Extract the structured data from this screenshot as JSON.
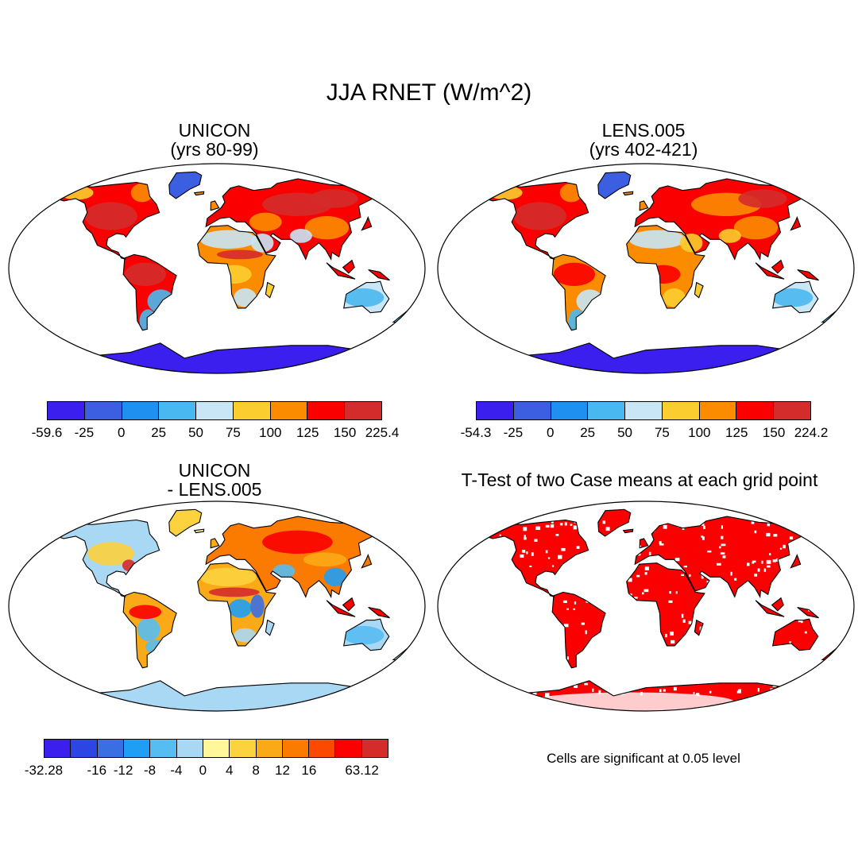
{
  "title": "JJA RNET (W/m^2)",
  "panels": [
    {
      "id": "unicon",
      "title_lines": [
        "UNICON",
        "(yrs 80-99)"
      ],
      "colorbar": {
        "colors": [
          "#3a1fef",
          "#3b5fe0",
          "#1f8ff0",
          "#4ab8f0",
          "#c8e6f6",
          "#fbcd2f",
          "#fb8c00",
          "#fb0000",
          "#d42b2b"
        ],
        "labels": [
          "-59.6",
          "-25",
          "0",
          "25",
          "50",
          "75",
          "100",
          "125",
          "150",
          "225.4"
        ]
      }
    },
    {
      "id": "lens",
      "title_lines": [
        "LENS.005",
        "(yrs 402-421)"
      ],
      "colorbar": {
        "colors": [
          "#3a1fef",
          "#3b5fe0",
          "#1f8ff0",
          "#4ab8f0",
          "#c8e6f6",
          "#fbcd2f",
          "#fb8c00",
          "#fb0000",
          "#d42b2b"
        ],
        "labels": [
          "-54.3",
          "-25",
          "0",
          "25",
          "50",
          "75",
          "100",
          "125",
          "150",
          "224.2"
        ]
      }
    },
    {
      "id": "diff",
      "title_lines": [
        "UNICON",
        "- LENS.005"
      ],
      "colorbar": {
        "colors": [
          "#3a1fef",
          "#2c46e4",
          "#3a6fe3",
          "#1f9ef5",
          "#56bdf2",
          "#a8d8f4",
          "#fff79a",
          "#fcd23e",
          "#fbaa17",
          "#fb7a00",
          "#fb4a00",
          "#fb0000",
          "#d42b2b"
        ],
        "labels": [
          "-32.28",
          "",
          "-16",
          "-12",
          "-8",
          "-4",
          "0",
          "4",
          "8",
          "12",
          "16",
          "",
          "63.12"
        ]
      }
    },
    {
      "id": "ttest",
      "title_lines": [
        "T-Test of two Case means at each grid point"
      ],
      "note": "Cells are significant at 0.05 level"
    }
  ],
  "colors": {
    "land": "#ffffff",
    "coast": "#000000",
    "significant": "#fb0000"
  }
}
